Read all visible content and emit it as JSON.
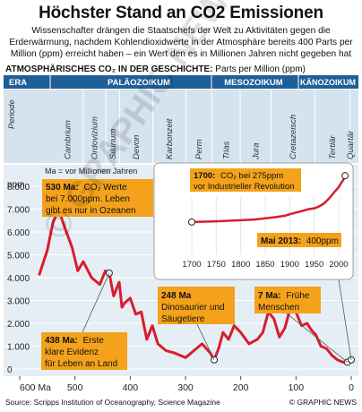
{
  "header": {
    "title": "Höchster Stand an CO2 Emissionen",
    "subtitle": "Wissenschafter drängen die Staatschefs der Welt zu Aktivitäten gegen die Erderwärmung, nachdem Kohlendioxidwerte in der Atmosphäre bereits 400 Parts per Million (ppm) erreicht haben – ein Wert den es in Millionen Jahren nicht gegeben hat",
    "section_title": "ATMOSPHÄRISCHES CO₂ IN DER GESCHICHTE:",
    "section_unit": "Parts per Million (ppm)"
  },
  "eras": {
    "era_label": "ERA",
    "periode_label": "Periode",
    "list": [
      {
        "name": "PALÄOZOIKUM"
      },
      {
        "name": "MESOZOIKUM"
      },
      {
        "name": "KÄNOZOIKUM"
      }
    ],
    "periods": [
      "Cambrium",
      "Ordovizium",
      "Silurium",
      "Devon",
      "Karbonzeit",
      "Perm",
      "Trias",
      "Jura",
      "Cretazeisch",
      "Tertiär",
      "Quartär"
    ]
  },
  "chart_data": {
    "type": "line",
    "title": "Höchster Stand an CO2 Emissionen",
    "ylabel": "ppm",
    "xlabel": "",
    "x_unit_note": "Ma = vor Millionen Jahren",
    "xlim": [
      600,
      0
    ],
    "ylim": [
      0,
      8000
    ],
    "x_ticks": [
      600,
      500,
      400,
      300,
      200,
      100,
      0
    ],
    "x_tick_labels": [
      "600 Ma",
      "500",
      "400",
      "300",
      "200",
      "100",
      "0"
    ],
    "y_ticks": [
      0,
      1000,
      2000,
      3000,
      4000,
      5000,
      6000,
      7000,
      8000
    ],
    "y_tick_labels": [
      "0",
      "1.000",
      "2.000",
      "3.000",
      "4.000",
      "5.000",
      "6.000",
      "7.000",
      "8.000"
    ],
    "grid": true,
    "series": [
      {
        "x": [
          565,
          550,
          540,
          530,
          520,
          505,
          495,
          485,
          470,
          455,
          445,
          438,
          430,
          420,
          415,
          410,
          400,
          390,
          380,
          370,
          360,
          350,
          335,
          320,
          300,
          285,
          270,
          255,
          248,
          240,
          232,
          222,
          212,
          200,
          185,
          170,
          160,
          150,
          140,
          130,
          120,
          110,
          100,
          90,
          80,
          72,
          64,
          55,
          45,
          35,
          25,
          15,
          7,
          3,
          0
        ],
        "values": [
          4100,
          5200,
          6400,
          7000,
          6300,
          5300,
          4300,
          4700,
          4000,
          3700,
          4300,
          4200,
          3200,
          3800,
          2700,
          2900,
          3100,
          2400,
          2500,
          1300,
          1900,
          1100,
          800,
          700,
          500,
          800,
          1100,
          700,
          400,
          900,
          1600,
          1300,
          1900,
          1600,
          1100,
          1300,
          1600,
          2500,
          2200,
          1400,
          1800,
          2700,
          2500,
          1900,
          2000,
          1700,
          1500,
          1000,
          900,
          600,
          400,
          300,
          300,
          280,
          400
        ]
      }
    ],
    "inset": {
      "title": "",
      "xlim": [
        1690,
        2020
      ],
      "x_ticks": [
        1700,
        1750,
        1800,
        1850,
        1900,
        1950,
        2000
      ],
      "x": [
        1700,
        1750,
        1800,
        1830,
        1850,
        1870,
        1890,
        1900,
        1920,
        1940,
        1950,
        1960,
        1970,
        1980,
        1990,
        2000,
        2005,
        2010,
        2013
      ],
      "values": [
        275,
        277,
        280,
        282,
        285,
        288,
        292,
        296,
        303,
        310,
        312,
        317,
        325,
        338,
        354,
        369,
        380,
        390,
        400
      ]
    }
  },
  "annotations": {
    "ma_note": "Ma = vor Millionen Jahren",
    "a530_bold": "530 Ma:",
    "a530_text1": "CO₂ Werte",
    "a530_text2": "bei 7.000ppm. Leben",
    "a530_text3": "gibt es nur in Ozeanen",
    "a438_bold": "438 Ma:",
    "a438_text1": "Erste",
    "a438_text2": "klare Evidenz",
    "a438_text3": "für Leben an Land",
    "a248_bold": "248 Ma",
    "a248_text1": "Dinosaurier und",
    "a248_text2": "Säugetiere",
    "a7_bold": "7 Ma:",
    "a7_text1": "Frühe",
    "a7_text2": "Menschen",
    "a1700_bold": "1700:",
    "a1700_text1": "CO₂ bei 275ppm",
    "a1700_text2": "vor Industrieller Revolution",
    "a2013_bold": "Mai 2013:",
    "a2013_text": "400ppm"
  },
  "footer": {
    "source": "Source: Scripps Institution of Oceanography, Science Magazine",
    "credit": "© GRAPHIC NEWS"
  },
  "watermark": "© GRAPHIC NEWS",
  "colors": {
    "era_blue": "#1f5f98",
    "period_band": "#d5e3ef",
    "chart_bg": "#e6eef5",
    "line_red": "#d81d2e",
    "callout_orange": "#f4a21b",
    "grid": "#ffffff"
  }
}
